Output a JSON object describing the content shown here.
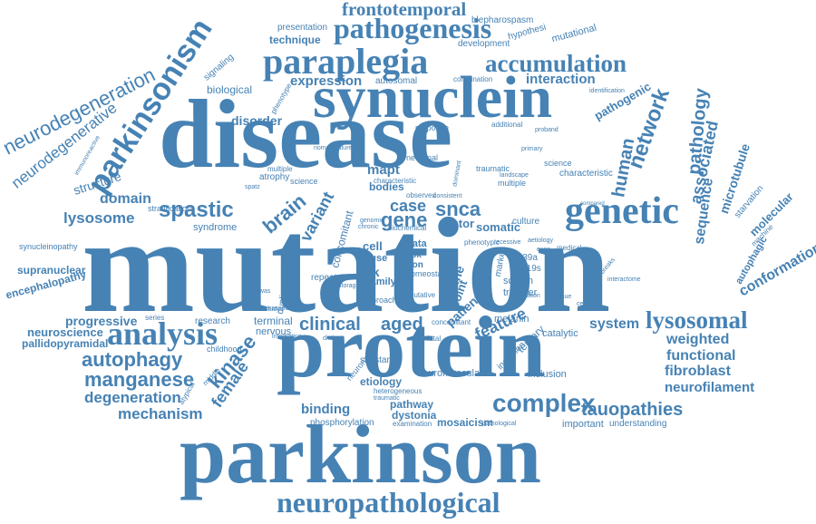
{
  "colors": {
    "word": "#4682b4",
    "background": "#ffffff"
  },
  "words": [
    "mutation",
    "protein",
    "disease",
    "parkinson",
    "synuclein",
    "paraplegia",
    "genetic",
    "neuropathological",
    "pathogenesis",
    "analysis",
    "lysosomal",
    "frontotemporal",
    "accumulation",
    "parkinsonism",
    "neurodegeneration",
    "neurodegenerative",
    "spastic",
    "network",
    "pathology",
    "human",
    "tauopathies",
    "complex",
    "clinical",
    "autophagy",
    "manganese",
    "kinase",
    "degeneration",
    "mechanism",
    "female",
    "progressive",
    "neuroscience",
    "pallidopyramidal",
    "lysosome",
    "domain",
    "structure",
    "brain",
    "variant",
    "gene",
    "case",
    "snca",
    "mapt",
    "interaction",
    "associated",
    "sequence",
    "microtubule",
    "molecular",
    "conformation",
    "autophagic",
    "functional",
    "fibroblast",
    "neurofilament",
    "weighted",
    "feature",
    "aged",
    "system",
    "binding",
    "dystonia",
    "mosaicism",
    "etiology",
    "pathway",
    "supranuclear",
    "encephalopathy",
    "synucleinopathy",
    "expression",
    "technique",
    "presentation",
    "blepharospasm",
    "hypothesi",
    "mutational",
    "development",
    "combination",
    "autosomal",
    "biological",
    "signaling",
    "phenotype",
    "disorder",
    "response",
    "additional",
    "pathogenic",
    "identification",
    "syndrome",
    "atrophy",
    "stratification",
    "lrrk",
    "cell",
    "cause",
    "data",
    "risk",
    "iron",
    "bodies",
    "family",
    "repeat",
    "duplication",
    "terminal",
    "nervous",
    "research",
    "childhood",
    "serine",
    "patient",
    "point",
    "melanin",
    "catalytic",
    "transfer",
    "screen",
    "slc39a",
    "g2019s",
    "marker",
    "tertiary",
    "inclusion",
    "important",
    "understanding",
    "phosphorylation",
    "examination",
    "pathological",
    "heterogeneous",
    "substantia",
    "neuronal",
    "traumatic",
    "characteristic",
    "science",
    "multiple",
    "medical",
    "starvation",
    "machine",
    "culture",
    "somatic",
    "factor",
    "primary",
    "proband",
    "landscape",
    "dominant",
    "characterization",
    "immunoreactive",
    "compared",
    "regulation",
    "recessive",
    "putative",
    "homeostasis",
    "neuromuscular",
    "approach",
    "nucleus",
    "study",
    "exon",
    "gwas",
    "series",
    "middle",
    "atypical",
    "aetiology",
    "phenotypic",
    "integrating",
    "concomitant",
    "fatal",
    "distinct",
    "spatz",
    "nomenclature",
    "chronic",
    "genomic",
    "observed",
    "transport",
    "integrated",
    "storage",
    "novel",
    "recent",
    "basis",
    "consistent",
    "biochemical",
    "impairment",
    "classification",
    "methodes",
    "pathogenic",
    "cellular",
    "interactome",
    "breaks",
    "tissue",
    "alpha",
    "sirna",
    "copy",
    "level",
    "acid",
    "unit",
    "mouse"
  ]
}
